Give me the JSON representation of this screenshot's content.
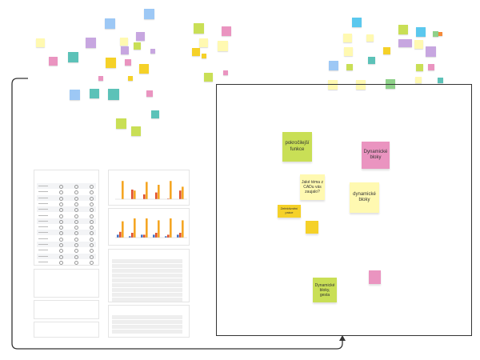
{
  "board": {
    "frame_notes": [
      {
        "text": "pokročilejší funkce",
        "color": "#c9df56"
      },
      {
        "text": "Dynamické bloky",
        "color": "#ea94c0"
      },
      {
        "text": "Jaké téma z CADu vás zaujalo?",
        "color": "#fff9b1"
      },
      {
        "text": "dynamické bloky",
        "color": "#fff9b1"
      },
      {
        "text": "Zefektivnění práce",
        "color": "#f5d128"
      },
      {
        "text": "Dynamické bloky, gesta",
        "color": "#c9df56"
      }
    ]
  },
  "colors": {
    "chart_blue": "#4472c4",
    "chart_red": "#e0502a",
    "chart_orange": "#f5a623"
  }
}
